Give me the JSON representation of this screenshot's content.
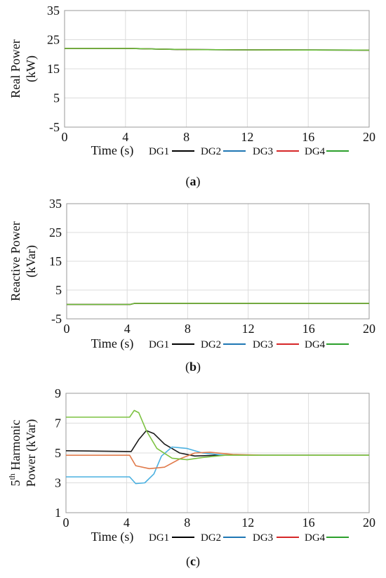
{
  "chart_data": [
    {
      "type": "line",
      "caption": "(a)",
      "ylabel_lines": [
        "Real Power",
        "(kW)"
      ],
      "xlabel": "Time (s)",
      "xlim": [
        0,
        20
      ],
      "ylim": [
        -5,
        35
      ],
      "xticks": [
        0,
        4,
        8,
        12,
        16,
        20
      ],
      "yticks": [
        -5,
        5,
        15,
        25,
        35
      ],
      "legend": [
        "DG1",
        "DG2",
        "DG3",
        "DG4"
      ],
      "series": [
        {
          "name": "DG1",
          "color": "#000000",
          "x": [
            0,
            4.2,
            6,
            8,
            12,
            20
          ],
          "y": [
            22,
            22,
            21.8,
            21.6,
            21.5,
            21.4
          ]
        },
        {
          "name": "DG2",
          "color": "#1f77b4",
          "x": [
            0,
            4.2,
            6,
            8,
            12,
            20
          ],
          "y": [
            22,
            22,
            21.8,
            21.6,
            21.5,
            21.4
          ]
        },
        {
          "name": "DG3",
          "color": "#d62728",
          "x": [
            0,
            4.2,
            6,
            8,
            12,
            20
          ],
          "y": [
            22,
            22,
            21.8,
            21.6,
            21.5,
            21.4
          ]
        },
        {
          "name": "DG4",
          "color": "#6abf3a",
          "x": [
            0,
            4.2,
            6,
            8,
            12,
            20
          ],
          "y": [
            22,
            22,
            21.8,
            21.6,
            21.5,
            21.4
          ]
        }
      ]
    },
    {
      "type": "line",
      "caption": "(b)",
      "ylabel_lines": [
        "Reactive Power",
        "(kVar)"
      ],
      "xlabel": "Time (s)",
      "xlim": [
        0,
        20
      ],
      "ylim": [
        -5,
        35
      ],
      "xticks": [
        0,
        4,
        8,
        12,
        16,
        20
      ],
      "yticks": [
        -5,
        5,
        15,
        25,
        35
      ],
      "legend": [
        "DG1",
        "DG2",
        "DG3",
        "DG4"
      ],
      "series": [
        {
          "name": "DG1",
          "color": "#000000",
          "x": [
            0,
            4.2,
            4.5,
            8,
            20
          ],
          "y": [
            0,
            0,
            0.4,
            0.4,
            0.4
          ]
        },
        {
          "name": "DG2",
          "color": "#1f77b4",
          "x": [
            0,
            4.2,
            4.5,
            8,
            20
          ],
          "y": [
            0,
            0,
            0.4,
            0.4,
            0.4
          ]
        },
        {
          "name": "DG3",
          "color": "#d62728",
          "x": [
            0,
            4.2,
            4.5,
            8,
            20
          ],
          "y": [
            0,
            0,
            0.4,
            0.4,
            0.4
          ]
        },
        {
          "name": "DG4",
          "color": "#6abf3a",
          "x": [
            0,
            4.2,
            4.5,
            8,
            20
          ],
          "y": [
            0,
            0,
            0.4,
            0.4,
            0.4
          ]
        }
      ]
    },
    {
      "type": "line",
      "caption": "(c)",
      "ylabel_lines": [
        "5th Harmonic",
        "Power (kVar)"
      ],
      "xlabel": "Time (s)",
      "xlim": [
        0,
        20
      ],
      "ylim": [
        1,
        9
      ],
      "xticks": [
        0,
        4,
        8,
        12,
        16,
        20
      ],
      "yticks": [
        1,
        3,
        5,
        7,
        9
      ],
      "legend": [
        "DG1",
        "DG2",
        "DG3",
        "DG4"
      ],
      "series": [
        {
          "name": "DG1",
          "color": "#1a1a1a",
          "x": [
            0,
            4.3,
            4.8,
            5.3,
            5.8,
            6.5,
            7.5,
            8.5,
            10,
            12,
            14,
            20
          ],
          "y": [
            5.15,
            5.1,
            5.9,
            6.5,
            6.3,
            5.6,
            5.0,
            4.8,
            4.85,
            4.85,
            4.85,
            4.85
          ]
        },
        {
          "name": "DG2",
          "color": "#4ab0e0",
          "x": [
            0,
            4.2,
            4.6,
            5.2,
            5.8,
            6.3,
            7.0,
            8.0,
            9.0,
            10.5,
            12,
            14,
            20
          ],
          "y": [
            3.4,
            3.4,
            2.95,
            3.0,
            3.6,
            4.8,
            5.4,
            5.3,
            5.0,
            4.85,
            4.85,
            4.85,
            4.85
          ]
        },
        {
          "name": "DG3",
          "color": "#e07a4a",
          "x": [
            0,
            4.2,
            4.6,
            5.5,
            6.5,
            7.5,
            8.5,
            9.5,
            11,
            13,
            20
          ],
          "y": [
            4.85,
            4.85,
            4.15,
            3.95,
            4.05,
            4.6,
            5.0,
            5.05,
            4.9,
            4.85,
            4.85
          ]
        },
        {
          "name": "DG4",
          "color": "#7dc242",
          "x": [
            0,
            4.2,
            4.5,
            4.8,
            5.3,
            6.0,
            7.0,
            8.0,
            9.0,
            10.5,
            12,
            14,
            20
          ],
          "y": [
            7.4,
            7.4,
            7.85,
            7.7,
            6.5,
            5.3,
            4.65,
            4.55,
            4.7,
            4.85,
            4.85,
            4.85,
            4.85
          ]
        }
      ]
    }
  ],
  "legend_colors": [
    "#000000",
    "#1f77b4",
    "#d62728",
    "#2ca02c"
  ]
}
